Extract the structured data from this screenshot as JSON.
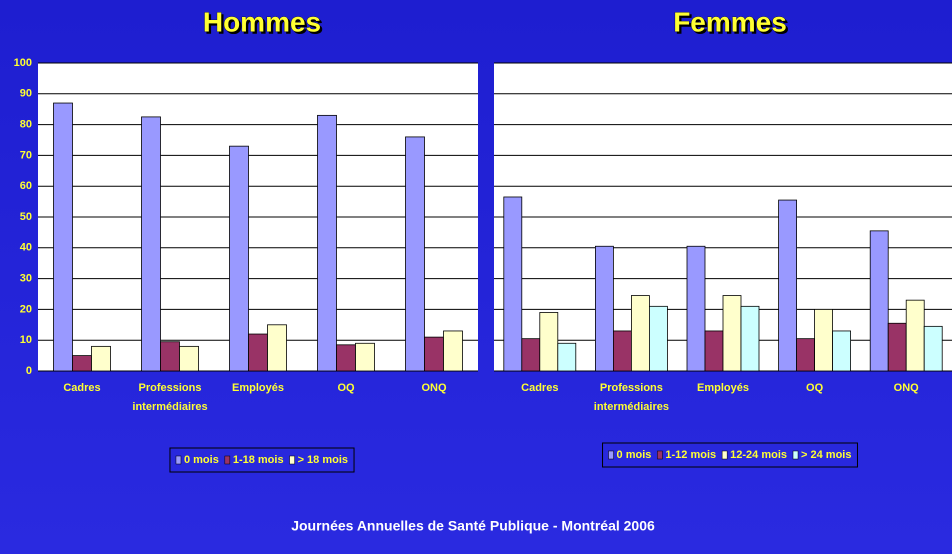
{
  "chart_data": [
    {
      "type": "bar",
      "title": "Hommes",
      "categories": [
        "Cadres",
        "Professions intermédiaires",
        "Employés",
        "OQ",
        "ONQ"
      ],
      "series": [
        {
          "name": "0 mois",
          "color": "#9999ff",
          "values": [
            87,
            82.5,
            73,
            83,
            76
          ]
        },
        {
          "name": "1-18 mois",
          "color": "#993366",
          "values": [
            5,
            9.5,
            12,
            8.5,
            11
          ]
        },
        {
          "name": "> 18 mois",
          "color": "#ffffcc",
          "values": [
            8,
            8,
            15,
            9,
            13
          ]
        }
      ],
      "ylim": [
        0,
        100
      ],
      "yticks": [
        0,
        10,
        20,
        30,
        40,
        50,
        60,
        70,
        80,
        90,
        100
      ],
      "grid": true,
      "show_ytick_labels": true
    },
    {
      "type": "bar",
      "title": "Femmes",
      "categories": [
        "Cadres",
        "Professions intermédiaires",
        "Employés",
        "OQ",
        "ONQ"
      ],
      "series": [
        {
          "name": "0 mois",
          "color": "#9999ff",
          "values": [
            56.5,
            40.5,
            40.5,
            55.5,
            45.5
          ]
        },
        {
          "name": "1-12 mois",
          "color": "#993366",
          "values": [
            10.5,
            13,
            13,
            10.5,
            15.5
          ]
        },
        {
          "name": "12-24 mois",
          "color": "#ffffcc",
          "values": [
            19,
            24.5,
            24.5,
            20,
            23
          ]
        },
        {
          "name": "> 24 mois",
          "color": "#ccffff",
          "values": [
            9,
            21,
            21,
            13,
            14.5
          ]
        }
      ],
      "ylim": [
        0,
        100
      ],
      "yticks": [
        0,
        10,
        20,
        30,
        40,
        50,
        60,
        70,
        80,
        90,
        100
      ],
      "grid": true,
      "show_ytick_labels": false
    }
  ],
  "footer": "Journées Annuelles de Santé Publique - Montréal 2006"
}
